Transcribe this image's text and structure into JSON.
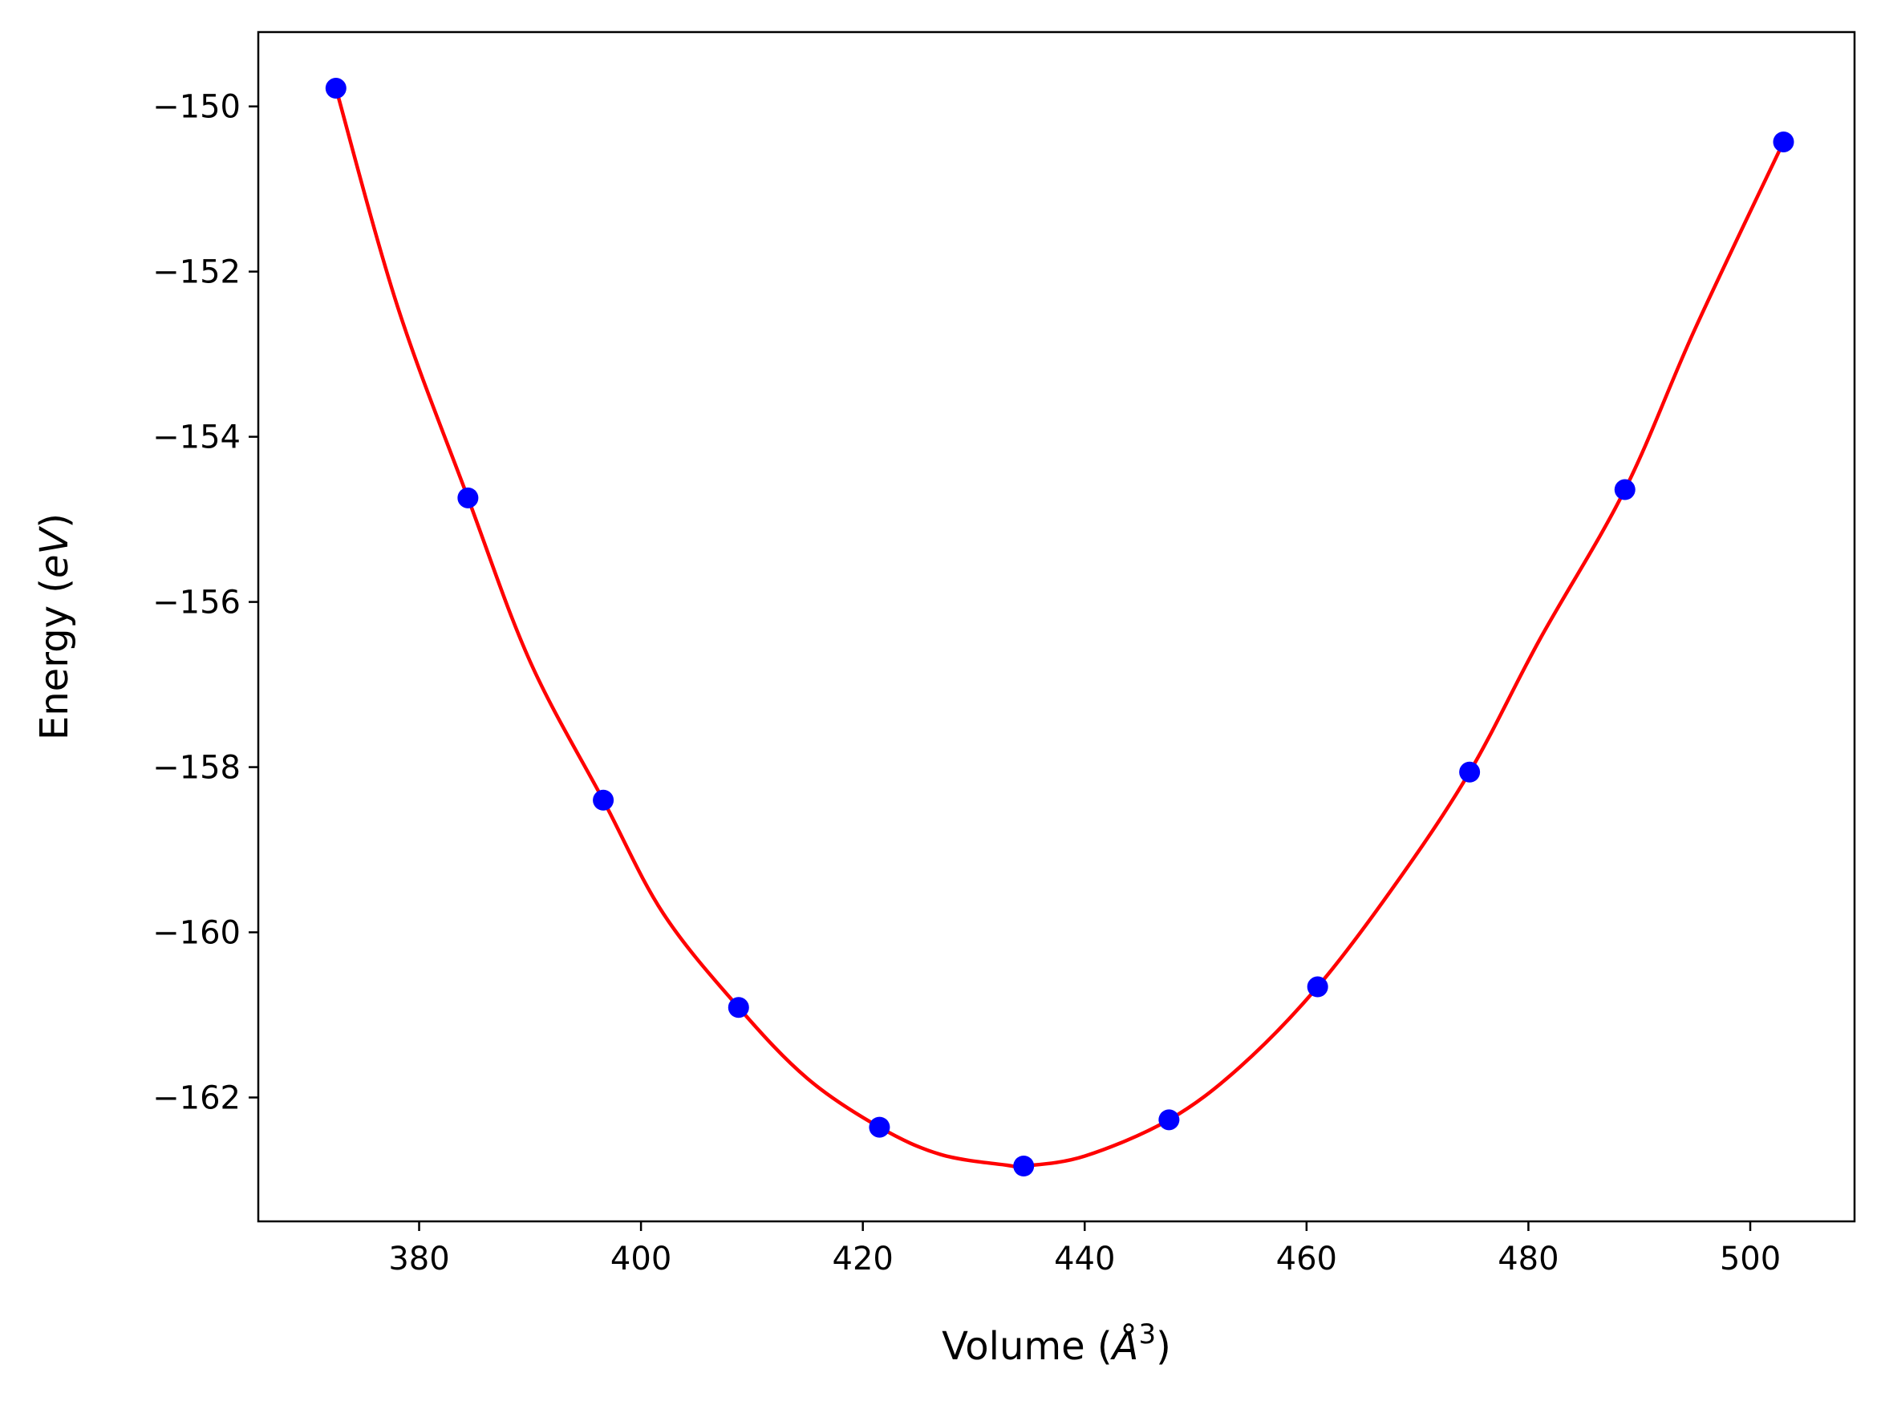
{
  "chart_data": {
    "type": "scatter",
    "title": "",
    "xlabel": "Volume ($\\AA^3$)",
    "xlabel_parts": {
      "prefix": "Volume (",
      "symbol": "Å",
      "sup": "3",
      "suffix": ")"
    },
    "ylabel": "Energy ($eV$)",
    "ylabel_parts": {
      "prefix": "Energy (",
      "italic": "eV",
      "suffix": ")"
    },
    "xlim": [
      365.5,
      509.4
    ],
    "ylim": [
      -163.5,
      -149.1
    ],
    "xticks": [
      380,
      400,
      420,
      440,
      460,
      480,
      500
    ],
    "yticks": [
      -150,
      -152,
      -154,
      -156,
      -158,
      -160,
      -162
    ],
    "xtick_labels": [
      "380",
      "400",
      "420",
      "440",
      "460",
      "480",
      "500"
    ],
    "ytick_labels": [
      "−150",
      "−152",
      "−154",
      "−156",
      "−158",
      "−160",
      "−162"
    ],
    "grid": false,
    "legend": "none",
    "series": [
      {
        "kind": "points",
        "color": "#0000ff",
        "x": [
          372.5,
          384.4,
          396.6,
          408.8,
          421.5,
          434.5,
          447.6,
          461.0,
          474.7,
          488.7,
          503.0
        ],
        "y": [
          -149.78,
          -154.74,
          -158.4,
          -160.91,
          -162.36,
          -162.83,
          -162.27,
          -160.66,
          -158.06,
          -154.64,
          -150.43
        ]
      },
      {
        "kind": "curve",
        "color": "#ff0000",
        "x": [
          372.5,
          378,
          384.4,
          390,
          396.6,
          402,
          408.8,
          415,
          421.5,
          427,
          433,
          434.5,
          440,
          447.6,
          454,
          461.0,
          468,
          474.7,
          481,
          488.7,
          495,
          503.0
        ],
        "y": [
          -149.78,
          -152.4,
          -154.74,
          -156.72,
          -158.4,
          -159.77,
          -160.91,
          -161.77,
          -162.36,
          -162.69,
          -162.82,
          -162.83,
          -162.71,
          -162.27,
          -161.63,
          -160.66,
          -159.42,
          -158.06,
          -156.46,
          -154.64,
          -152.7,
          -150.43
        ]
      }
    ]
  }
}
